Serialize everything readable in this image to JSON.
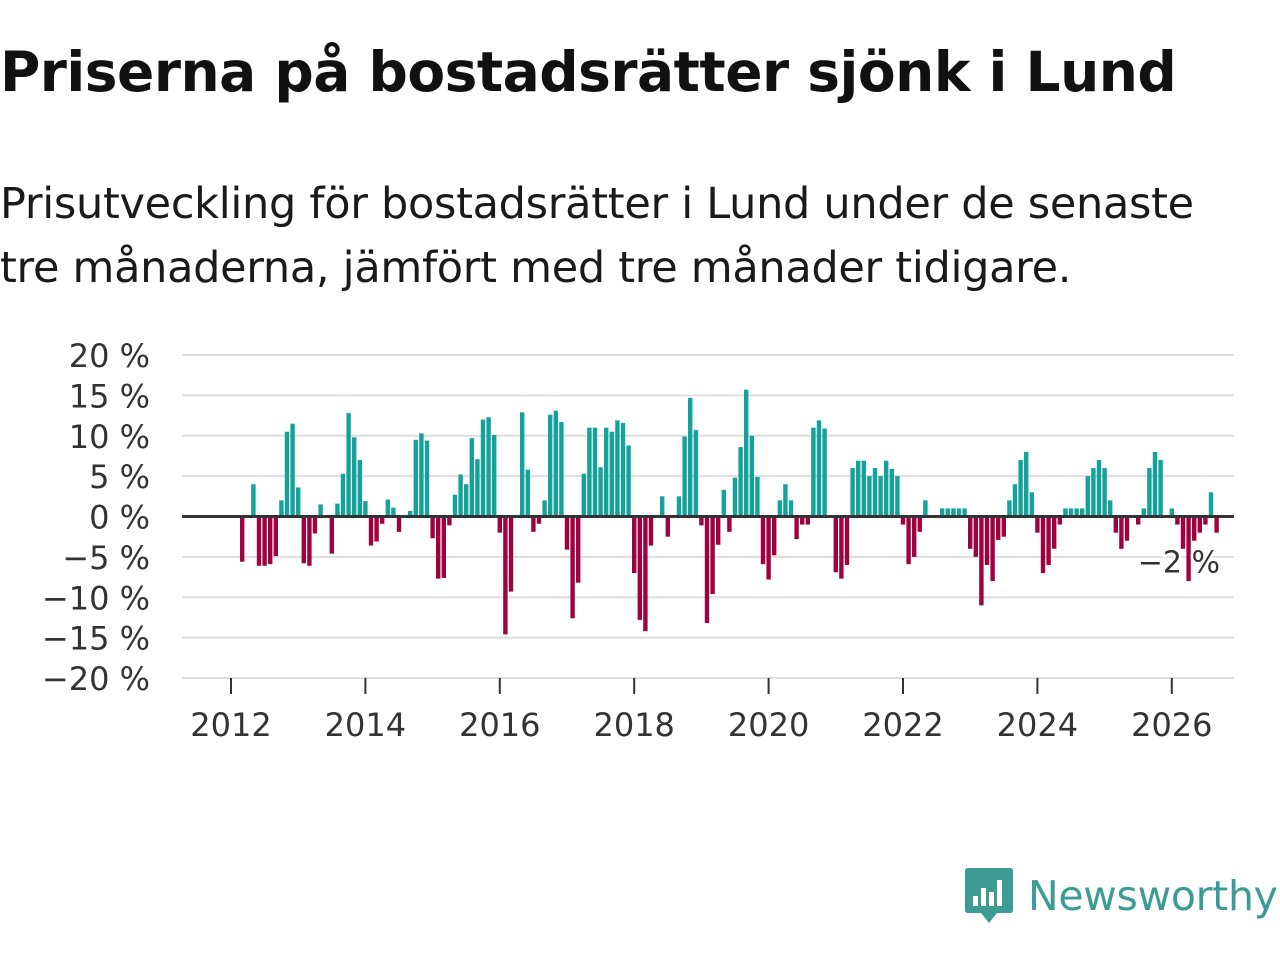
{
  "title": "Priserna på bostadsrätter sjönk i Lund",
  "subtitle": "Prisutveckling för bostadsrätter i Lund under de senaste tre månaderna, jämfört med tre månader tidigare.",
  "brand": {
    "name": "Newsworthy",
    "color": "#3c9c94"
  },
  "colors": {
    "positive": "#13a39b",
    "negative": "#a0023f",
    "grid": "#dddddd",
    "zero": "#333333"
  },
  "chart_data": {
    "type": "bar",
    "x_start": "2012-01",
    "y_tick_labels": [
      "20 %",
      "15 %",
      "10 %",
      "5 %",
      "0 %",
      "−5 %",
      "−10 %",
      "−15 %",
      "−20 %"
    ],
    "y_ticks": [
      20,
      15,
      10,
      5,
      0,
      -5,
      -10,
      -15,
      -20
    ],
    "ylim": [
      -20,
      20
    ],
    "x_tick_labels": [
      "2012",
      "2014",
      "2016",
      "2018",
      "2020",
      "2022",
      "2024",
      "2026"
    ],
    "last_value_label": "−2 %",
    "values": [
      0,
      0,
      -5.6,
      0,
      4,
      -6.1,
      -6.1,
      -5.9,
      -4.9,
      2,
      10.5,
      11.5,
      3.6,
      -5.8,
      -6.1,
      -2.1,
      1.5,
      0,
      -4.6,
      1.6,
      5.3,
      12.8,
      9.8,
      7,
      1.9,
      -3.6,
      -3.1,
      -0.9,
      2.1,
      1.1,
      -1.9,
      0,
      0.7,
      9.5,
      10.3,
      9.4,
      -2.7,
      -7.7,
      -7.6,
      -1.1,
      2.7,
      5.2,
      4,
      9.7,
      7.1,
      12,
      12.3,
      10.1,
      -2,
      -14.6,
      -9.3,
      0,
      12.9,
      5.8,
      -1.9,
      -0.9,
      2,
      12.6,
      13.1,
      11.7,
      -4.1,
      -12.6,
      -8.2,
      5.3,
      11,
      11,
      6.1,
      11,
      10.5,
      11.9,
      11.6,
      8.8,
      -7,
      -12.8,
      -14.2,
      -3.6,
      0.2,
      2.5,
      -2.5,
      0,
      2.5,
      9.9,
      14.7,
      10.7,
      -1.1,
      -13.2,
      -9.6,
      -3.5,
      3.3,
      -1.9,
      4.8,
      8.6,
      15.7,
      10,
      4.9,
      -5.9,
      -7.8,
      -4.8,
      2,
      4,
      2,
      -2.8,
      -1,
      -1,
      11,
      11.9,
      10.9,
      0,
      -6.9,
      -7.7,
      -6,
      6,
      6.9,
      6.9,
      5,
      6,
      5,
      6.9,
      5.9,
      5,
      -1,
      -5.9,
      -5,
      -1.9,
      2,
      0,
      0,
      1,
      1,
      1,
      1,
      1,
      -4,
      -5,
      -11,
      -6,
      -8,
      -2.9,
      -2.5,
      2,
      4,
      7,
      8,
      3,
      -2,
      -7,
      -6,
      -4,
      -1,
      1,
      1,
      1,
      1,
      5,
      6,
      7,
      6,
      2,
      -2,
      -4,
      -3,
      0,
      -1,
      1,
      6,
      8,
      7,
      0,
      1,
      -1,
      -4,
      -8,
      -3,
      -2,
      -1,
      3,
      -2
    ]
  }
}
